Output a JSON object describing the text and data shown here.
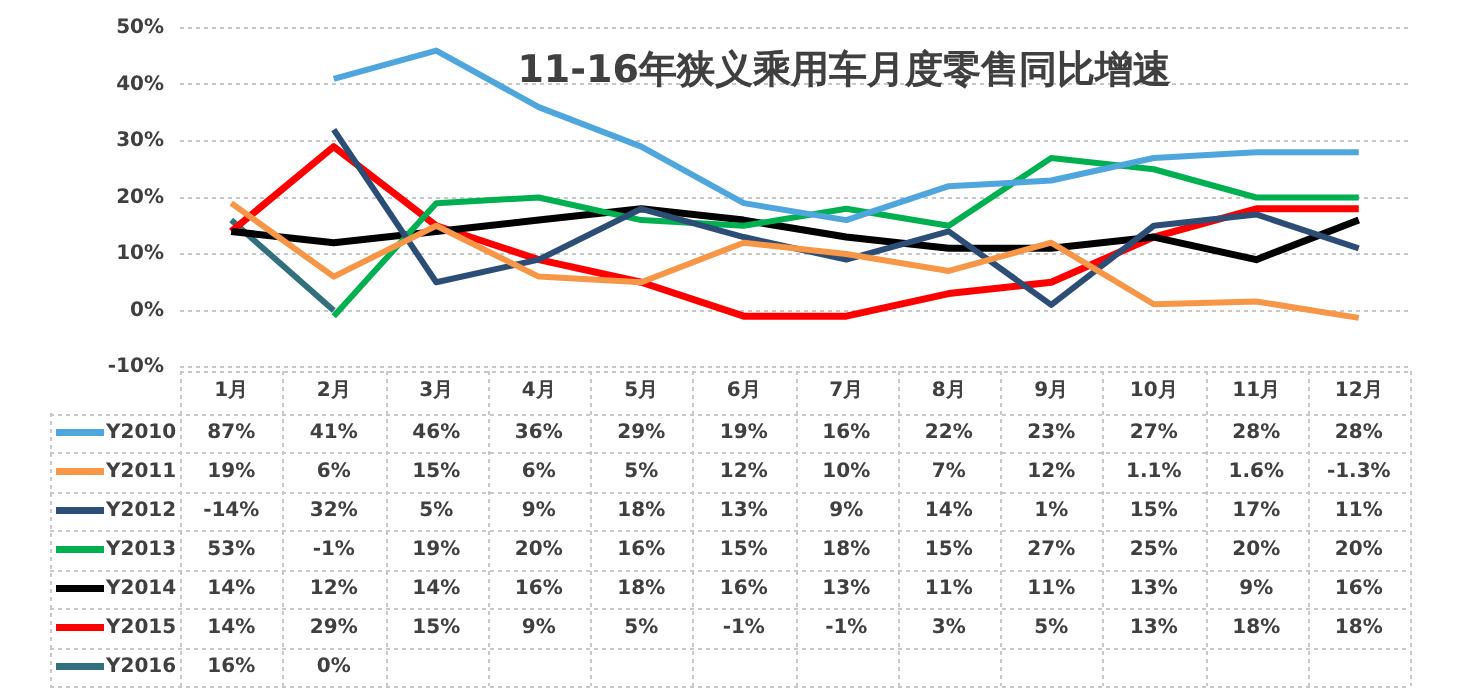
{
  "chart_data": {
    "type": "line",
    "title": "11-16年狭义乘用车月度零售同比增速",
    "categories": [
      "1月",
      "2月",
      "3月",
      "4月",
      "5月",
      "6月",
      "7月",
      "8月",
      "9月",
      "10月",
      "11月",
      "12月"
    ],
    "ylim": [
      -10,
      50
    ],
    "yticks": [
      {
        "value": -10,
        "label": "-10%"
      },
      {
        "value": 0,
        "label": "0%"
      },
      {
        "value": 10,
        "label": "10%"
      },
      {
        "value": 20,
        "label": "20%"
      },
      {
        "value": 30,
        "label": "30%"
      },
      {
        "value": 40,
        "label": "40%"
      },
      {
        "value": 50,
        "label": "50%"
      }
    ],
    "grid": "y",
    "legend": "bottom left",
    "marker": "none",
    "line_style": "solid",
    "series": [
      {
        "name": "Y2010",
        "color": "#4ea6dc",
        "values": [
          null,
          41,
          46,
          36,
          29,
          19,
          16,
          22,
          23,
          27,
          28,
          28
        ],
        "value_labels": [
          "87%",
          "41%",
          "46%",
          "36%",
          "29%",
          "19%",
          "16%",
          "22%",
          "23%",
          "27%",
          "28%",
          "28%"
        ]
      },
      {
        "name": "Y2011",
        "color": "#f79646",
        "values": [
          19,
          6,
          15,
          6,
          5,
          12,
          10,
          7,
          12,
          1.1,
          1.6,
          -1.3
        ],
        "value_labels": [
          "19%",
          "6%",
          "15%",
          "6%",
          "5%",
          "12%",
          "10%",
          "7%",
          "12%",
          "1.1%",
          "1.6%",
          "-1.3%"
        ]
      },
      {
        "name": "Y2012",
        "color": "#2c4d75",
        "values": [
          null,
          32,
          5,
          9,
          18,
          13,
          9,
          14,
          1,
          15,
          17,
          11
        ],
        "value_labels": [
          "-14%",
          "32%",
          "5%",
          "9%",
          "18%",
          "13%",
          "9%",
          "14%",
          "1%",
          "15%",
          "17%",
          "11%"
        ]
      },
      {
        "name": "Y2013",
        "color": "#00b050",
        "values": [
          null,
          -1,
          19,
          20,
          16,
          15,
          18,
          15,
          27,
          25,
          20,
          20
        ],
        "value_labels": [
          "53%",
          "-1%",
          "19%",
          "20%",
          "16%",
          "15%",
          "18%",
          "15%",
          "27%",
          "25%",
          "20%",
          "20%"
        ]
      },
      {
        "name": "Y2014",
        "color": "#000000",
        "values": [
          14,
          12,
          14,
          16,
          18,
          16,
          13,
          11,
          11,
          13,
          9,
          16
        ],
        "value_labels": [
          "14%",
          "12%",
          "14%",
          "16%",
          "18%",
          "16%",
          "13%",
          "11%",
          "11%",
          "13%",
          "9%",
          "16%"
        ]
      },
      {
        "name": "Y2015",
        "color": "#ff0000",
        "values": [
          14,
          29,
          15,
          9,
          5,
          -1,
          -1,
          3,
          5,
          13,
          18,
          18
        ],
        "value_labels": [
          "14%",
          "29%",
          "15%",
          "9%",
          "5%",
          "-1%",
          "-1%",
          "3%",
          "5%",
          "13%",
          "18%",
          "18%"
        ]
      },
      {
        "name": "Y2016",
        "color": "#31707c",
        "values": [
          16,
          0,
          null,
          null,
          null,
          null,
          null,
          null,
          null,
          null,
          null,
          null
        ],
        "value_labels": [
          "16%",
          "0%",
          null,
          null,
          null,
          null,
          null,
          null,
          null,
          null,
          null,
          null
        ]
      }
    ]
  }
}
